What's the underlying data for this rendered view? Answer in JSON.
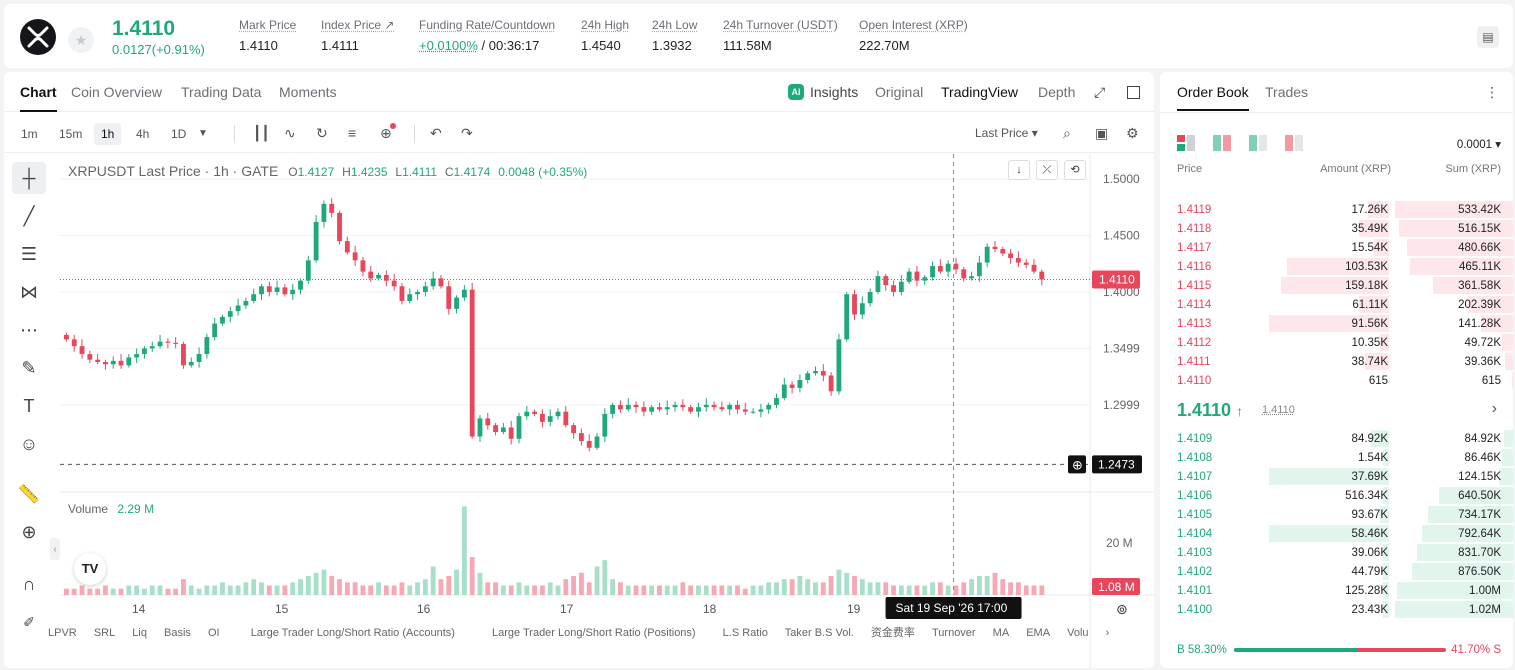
{
  "header": {
    "price": "1.4110",
    "change": "0.0127(+0.91%)",
    "stats": [
      {
        "label": "Mark Price",
        "value": "1.4110"
      },
      {
        "label": "Index Price ↗",
        "value": "1.4111"
      },
      {
        "label": "Funding Rate/Countdown",
        "value": "+0.0100%",
        "value2": " / 00:36:17"
      },
      {
        "label": "24h High",
        "value": "1.4540"
      },
      {
        "label": "24h Low",
        "value": "1.3932"
      },
      {
        "label": "24h Turnover (USDT)",
        "value": "111.58M"
      },
      {
        "label": "Open Interest (XRP)",
        "value": "222.70M"
      }
    ]
  },
  "chart_tabs": [
    "Chart",
    "Coin Overview",
    "Trading Data",
    "Moments"
  ],
  "view_tabs": {
    "insights": "Insights",
    "original": "Original",
    "tradingview": "TradingView",
    "depth": "Depth"
  },
  "timeframes": [
    "1m",
    "15m",
    "1h",
    "4h",
    "1D"
  ],
  "price_type": "Last Price ▾",
  "legend": {
    "symbol": "XRPUSDT Last Price · 1h · GATE",
    "o": "1.4127",
    "h": "1.4235",
    "l": "1.4111",
    "c": "1.4174",
    "chg": "0.0048 (+0.35%)"
  },
  "volume_label": "Volume",
  "volume_value": "2.29 M",
  "crosshair": {
    "date": "Sat 19 Sep '26",
    "time": "17:00",
    "price": "1.2473"
  },
  "indicators": [
    "LPVR",
    "SRL",
    "Liq",
    "Basis",
    "OI",
    "Large Trader Long/Short Ratio (Accounts)",
    "Large Trader Long/Short Ratio (Positions)",
    "L.S Ratio",
    "Taker B.S Vol.",
    "资金费率",
    "Turnover",
    "MA",
    "EMA",
    "Volu"
  ],
  "chart_data": {
    "type": "candlestick",
    "y_ticks": [
      "1.5000",
      "1.4500",
      "1.4000",
      "1.3499",
      "1.2999"
    ],
    "x_ticks": [
      "14",
      "15",
      "16",
      "17",
      "18",
      "19"
    ],
    "last_price_label": "1.4110",
    "volume_tick": "20 M",
    "volume_last_label": "1.08 M",
    "closes": [
      1.358,
      1.352,
      1.345,
      1.34,
      1.338,
      1.336,
      1.339,
      1.335,
      1.342,
      1.345,
      1.35,
      1.352,
      1.356,
      1.355,
      1.354,
      1.335,
      1.338,
      1.345,
      1.36,
      1.372,
      1.378,
      1.383,
      1.388,
      1.392,
      1.398,
      1.405,
      1.4,
      1.404,
      1.398,
      1.402,
      1.41,
      1.428,
      1.462,
      1.478,
      1.47,
      1.445,
      1.435,
      1.428,
      1.418,
      1.412,
      1.415,
      1.41,
      1.405,
      1.392,
      1.398,
      1.4,
      1.405,
      1.412,
      1.405,
      1.385,
      1.395,
      1.402,
      1.272,
      1.288,
      1.282,
      1.276,
      1.28,
      1.27,
      1.29,
      1.294,
      1.292,
      1.285,
      1.29,
      1.294,
      1.282,
      1.275,
      1.268,
      1.262,
      1.272,
      1.292,
      1.3,
      1.296,
      1.3,
      1.298,
      1.294,
      1.298,
      1.296,
      1.298,
      1.3,
      1.298,
      1.294,
      1.298,
      1.3,
      1.298,
      1.296,
      1.3,
      1.296,
      1.294,
      1.294,
      1.296,
      1.3,
      1.306,
      1.318,
      1.315,
      1.322,
      1.328,
      1.33,
      1.326,
      1.312,
      1.358,
      1.398,
      1.38,
      1.39,
      1.4,
      1.414,
      1.406,
      1.4,
      1.409,
      1.418,
      1.41,
      1.413,
      1.423,
      1.418,
      1.425,
      1.42,
      1.412,
      1.414,
      1.426,
      1.44,
      1.438,
      1.434,
      1.43,
      1.426,
      1.424,
      1.418,
      1.411
    ],
    "opens_note": "open = previous close",
    "volumes": [
      2,
      2,
      3,
      2,
      2,
      3,
      2,
      2,
      3,
      3,
      2,
      3,
      3,
      2,
      2,
      5,
      3,
      2,
      3,
      3,
      4,
      3,
      3,
      4,
      5,
      4,
      3,
      3,
      3,
      4,
      5,
      6,
      7,
      8,
      6,
      5,
      4,
      4,
      3,
      3,
      4,
      3,
      3,
      4,
      3,
      4,
      5,
      9,
      5,
      6,
      8,
      28,
      12,
      7,
      4,
      4,
      3,
      3,
      4,
      3,
      3,
      3,
      4,
      3,
      5,
      6,
      7,
      4,
      9,
      11,
      5,
      4,
      3,
      3,
      3,
      3,
      3,
      3,
      3,
      4,
      3,
      3,
      3,
      3,
      3,
      3,
      3,
      2,
      3,
      3,
      4,
      4,
      5,
      5,
      6,
      5,
      4,
      4,
      6,
      8,
      7,
      6,
      5,
      4,
      4,
      4,
      3,
      3,
      3,
      3,
      3,
      4,
      4,
      3,
      3,
      4,
      5,
      6,
      6,
      7,
      5,
      4,
      4,
      3,
      3,
      3,
      3,
      2
    ]
  },
  "orderbook": {
    "tabs": [
      "Order Book",
      "Trades"
    ],
    "precision": "0.0001 ▾",
    "headers": [
      "Price",
      "Amount (XRP)",
      "Sum (XRP)"
    ],
    "asks": [
      [
        "1.4119",
        "17.26K",
        "533.42K",
        0.07,
        1.0
      ],
      [
        "1.4118",
        "35.49K",
        "516.15K",
        0.1,
        0.97
      ],
      [
        "1.4117",
        "15.54K",
        "480.66K",
        0.05,
        0.9
      ],
      [
        "1.4116",
        "103.53K",
        "465.11K",
        0.34,
        0.87
      ],
      [
        "1.4115",
        "159.18K",
        "361.58K",
        0.36,
        0.68
      ],
      [
        "1.4114",
        "61.11K",
        "202.39K",
        0.1,
        0.38
      ],
      [
        "1.4113",
        "91.56K",
        "141.28K",
        0.4,
        0.27
      ],
      [
        "1.4112",
        "10.35K",
        "49.72K",
        0.03,
        0.09
      ],
      [
        "1.4111",
        "38.74K",
        "39.36K",
        0.08,
        0.07
      ],
      [
        "1.4110",
        "615",
        "615",
        0.0,
        0.01
      ]
    ],
    "mid_price": "1.4110",
    "mid_mark": "1.4110",
    "bids": [
      [
        "1.4109",
        "84.92K",
        "84.92K",
        0.06,
        0.08
      ],
      [
        "1.4108",
        "1.54K",
        "86.46K",
        0.02,
        0.09
      ],
      [
        "1.4107",
        "37.69K",
        "124.15K",
        0.4,
        0.12
      ],
      [
        "1.4106",
        "516.34K",
        "640.50K",
        0.02,
        0.63
      ],
      [
        "1.4105",
        "93.67K",
        "734.17K",
        0.03,
        0.72
      ],
      [
        "1.4104",
        "58.46K",
        "792.64K",
        0.4,
        0.77
      ],
      [
        "1.4103",
        "39.06K",
        "831.70K",
        0.02,
        0.81
      ],
      [
        "1.4102",
        "44.79K",
        "876.50K",
        0.02,
        0.86
      ],
      [
        "1.4101",
        "125.28K",
        "1.00M",
        0.02,
        0.98
      ],
      [
        "1.4100",
        "23.43K",
        "1.02M",
        0.02,
        1.0
      ]
    ],
    "buy_ratio": "B 58.30%",
    "sell_ratio": "41.70% S",
    "buy_fraction": 0.583
  }
}
